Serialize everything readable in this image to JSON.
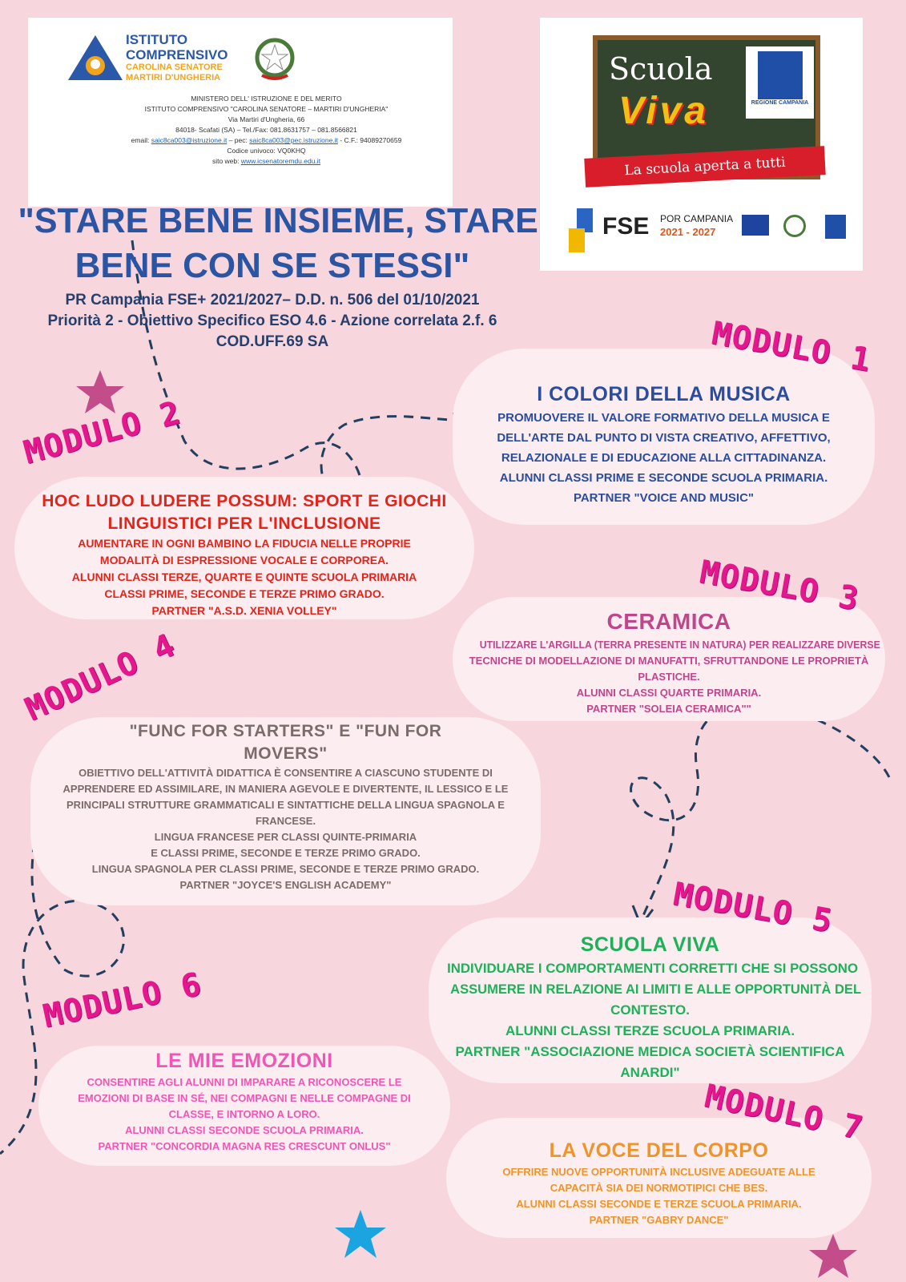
{
  "header": {
    "school_logo_lines": [
      "ISTITUTO",
      "COMPRENSIVO",
      "CAROLINA SENATORE",
      "MARTIRI D'UNGHERIA"
    ],
    "info_lines": [
      "MINISTERO DELL' ISTRUZIONE E DEL MERITO",
      "ISTITUTO COMPRENSIVO   \"CAROLINA SENATORE – MARTIRI D'UNGHERIA\"",
      "Via Martiri d'Ungheria, 66",
      "84018- Scafati (SA) – Tel./Fax: 081.8631757 – 081.8566821"
    ],
    "email_label": "email: ",
    "email": "saic8ca003@istruzione.it",
    "pec_label": " – pec: ",
    "pec": "saic8ca003@pec.istruzione.it",
    "cf": " - C.F.: 94089270659",
    "codice": "Codice univoco: VQ0KHQ",
    "site_label": "sito web: ",
    "site": "www.icsenatoremdu.edu.it"
  },
  "scuola_viva_logo": {
    "word1": "Scuola",
    "word2": "Viva",
    "region": "REGIONE CAMPANIA",
    "tagline": "La scuola aperta a tutti",
    "fse": "FSE",
    "por": "POR CAMPANIA",
    "years": "2021 - 2027"
  },
  "title": {
    "line1": "\"STARE BENE INSIEME, STARE",
    "line2": "BENE CON SE STESSI\"",
    "sub1": "PR Campania FSE+ 2021/2027– D.D. n. 506 del 01/10/2021",
    "sub2": "Priorità 2 - Obiettivo Specifico ESO 4.6 - Azione correlata 2.f. 6",
    "sub3": "COD.UFF.69 SA"
  },
  "colors": {
    "background": "#f8d6dd",
    "label": "#e4178f",
    "title": "#2b55a3"
  },
  "modules": [
    {
      "label": "MODULO 1",
      "title": "I COLORI DELLA MUSICA",
      "color": "#2a4d9e",
      "body": [
        "PROMUOVERE IL VALORE FORMATIVO DELLA MUSICA E",
        "DELL'ARTE DAL PUNTO DI VISTA CREATIVO, AFFETTIVO,",
        "RELAZIONALE E DI EDUCAZIONE ALLA CITTADINANZA.",
        "ALUNNI CLASSI PRIME E SECONDE SCUOLA PRIMARIA.",
        "PARTNER  \"VOICE AND MUSIC\""
      ]
    },
    {
      "label": "MODULO 2",
      "title": "HOC LUDO LUDERE POSSUM: SPORT E GIOCHI LINGUISTICI PER L'INCLUSIONE",
      "color": "#e3241b",
      "body": [
        "AUMENTARE IN OGNI BAMBINO LA FIDUCIA NELLE PROPRIE",
        "MODALITÀ DI ESPRESSIONE VOCALE E CORPOREA.",
        "ALUNNI CLASSI TERZE, QUARTE E QUINTE SCUOLA PRIMARIA",
        "CLASSI PRIME,  SECONDE E TERZE PRIMO GRADO.",
        "PARTNER \"A.S.D. XENIA VOLLEY\""
      ]
    },
    {
      "label": "MODULO 3",
      "title": "CERAMICA",
      "color": "#c0468b",
      "body": [
        "UTILIZZARE L'ARGILLA (TERRA PRESENTE IN NATURA) PER REALIZZARE DIVERSE",
        "TECNICHE DI MODELLAZIONE DI MANUFATTI, SFRUTTANDONE LE PROPRIETÀ",
        "PLASTICHE.",
        "ALUNNI CLASSI QUARTE PRIMARIA.",
        "PARTNER \"SOLEIA CERAMICA\"\""
      ]
    },
    {
      "label": "MODULO 4",
      "title": "\"FUNC FOR STARTERS\" E \"FUN FOR MOVERS\"",
      "color": "#7b6b6b",
      "body": [
        "OBIETTIVO DELL'ATTIVITÀ DIDATTICA È CONSENTIRE A CIASCUNO STUDENTE DI",
        "APPRENDERE ED ASSIMILARE, IN MANIERA AGEVOLE E DIVERTENTE, IL LESSICO E LE",
        "PRINCIPALI STRUTTURE GRAMMATICALI E SINTATTICHE DELLA LINGUA SPAGNOLA E",
        "FRANCESE.",
        "LINGUA FRANCESE PER CLASSI QUINTE-PRIMARIA",
        "E CLASSI PRIME, SECONDE E TERZE PRIMO GRADO.",
        "LINGUA SPAGNOLA PER CLASSI PRIME, SECONDE E TERZE PRIMO GRADO.",
        "PARTNER \"JOYCE'S ENGLISH ACADEMY\""
      ]
    },
    {
      "label": "MODULO 5",
      "title": "SCUOLA VIVA",
      "color": "#1db15a",
      "body": [
        "INDIVIDUARE I COMPORTAMENTI CORRETTI CHE SI POSSONO",
        "ASSUMERE IN RELAZIONE AI LIMITI E ALLE OPPORTUNITÀ DEL",
        "CONTESTO.",
        "ALUNNI CLASSI TERZE SCUOLA PRIMARIA.",
        "PARTNER \"ASSOCIAZIONE MEDICA SOCIETÀ SCIENTIFICA",
        "ANARDI\""
      ]
    },
    {
      "label": "MODULO 6",
      "title": "LE MIE EMOZIONI",
      "color": "#f057b4",
      "body": [
        "CONSENTIRE AGLI ALUNNI DI IMPARARE A RICONOSCERE LE",
        "EMOZIONI DI BASE IN SÉ, NEI COMPAGNI E NELLE COMPAGNE DI",
        "CLASSE, E INTORNO A LORO.",
        "ALUNNI CLASSI SECONDE SCUOLA PRIMARIA.",
        "PARTNER \"CONCORDIA MAGNA RES CRESCUNT ONLUS\""
      ]
    },
    {
      "label": "MODULO 7",
      "title": "LA VOCE DEL CORPO",
      "color": "#ef9429",
      "body": [
        "OFFRIRE NUOVE OPPORTUNITÀ INCLUSIVE ADEGUATE ALLE",
        "CAPACITÀ SIA DEI NORMOTIPICI CHE BES.",
        "ALUNNI CLASSI SECONDE E TERZE SCUOLA PRIMARIA.",
        "PARTNER  \"GABRY DANCE\""
      ]
    }
  ]
}
